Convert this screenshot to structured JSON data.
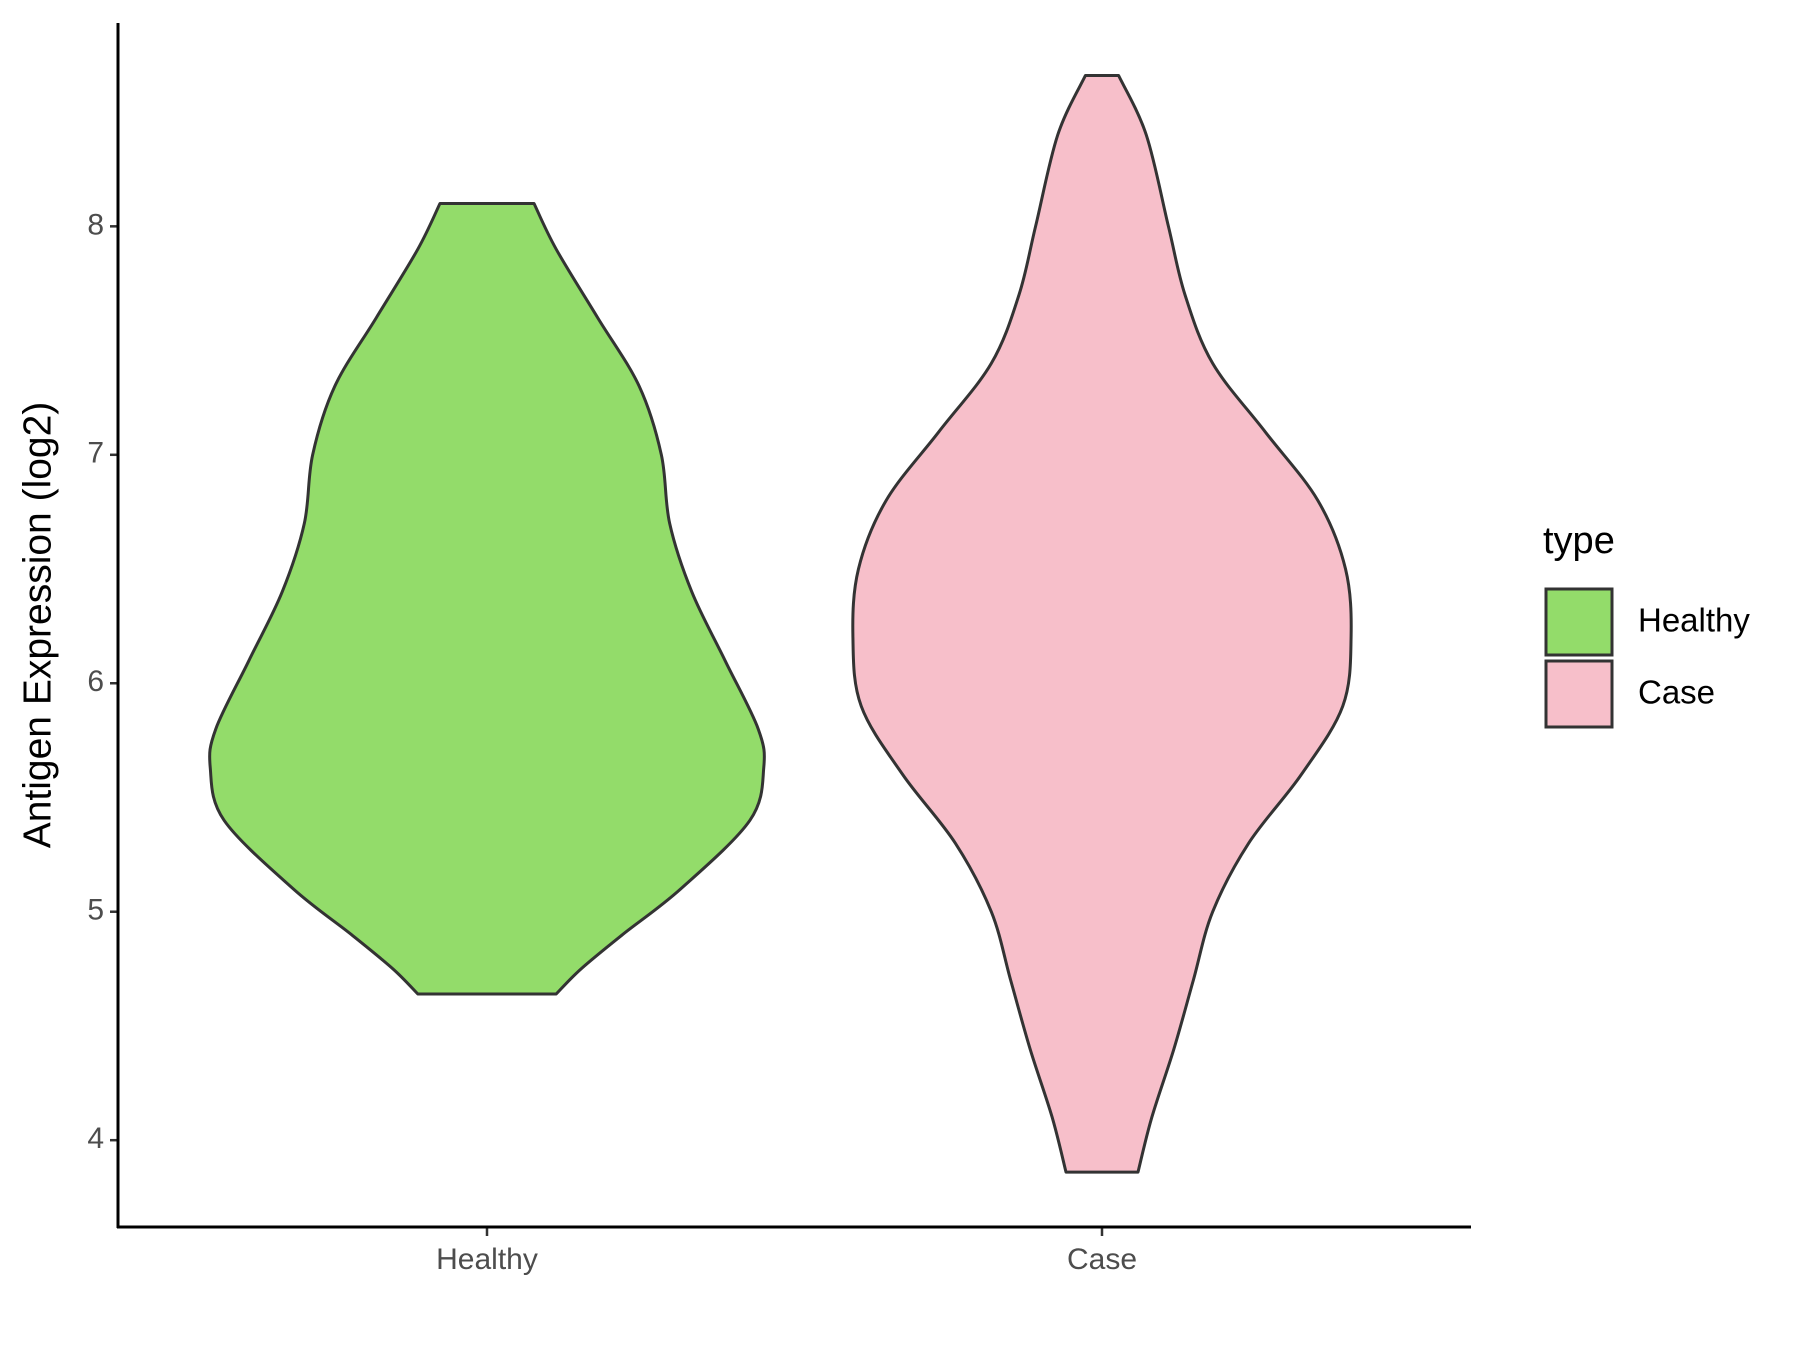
{
  "chart_data": {
    "type": "violin",
    "y_label": "Antigen Expression (log2)",
    "categories": [
      "Healthy",
      "Case"
    ],
    "ylim": [
      3.62,
      8.89
    ],
    "yticks": [
      4,
      5,
      6,
      7,
      8
    ],
    "legend_title": "type",
    "legend_position": "right",
    "series": [
      {
        "name": "Healthy",
        "color": "#93dc6a",
        "y": [
          8.1,
          7.9,
          7.6,
          7.3,
          7.0,
          6.7,
          6.4,
          6.1,
          5.8,
          5.63,
          5.4,
          5.1,
          4.9,
          4.75,
          4.64
        ],
        "widths": [
          0.17,
          0.25,
          0.4,
          0.55,
          0.63,
          0.66,
          0.74,
          0.86,
          0.98,
          1.0,
          0.95,
          0.7,
          0.49,
          0.34,
          0.25
        ]
      },
      {
        "name": "Case",
        "color": "#f7bfca",
        "y": [
          8.66,
          8.4,
          8.0,
          7.7,
          7.4,
          7.1,
          6.8,
          6.5,
          6.2,
          5.9,
          5.6,
          5.3,
          5.0,
          4.7,
          4.4,
          4.1,
          3.86
        ],
        "widths": [
          0.06,
          0.16,
          0.24,
          0.3,
          0.4,
          0.59,
          0.78,
          0.88,
          0.9,
          0.87,
          0.72,
          0.53,
          0.4,
          0.33,
          0.26,
          0.18,
          0.13
        ]
      }
    ]
  }
}
